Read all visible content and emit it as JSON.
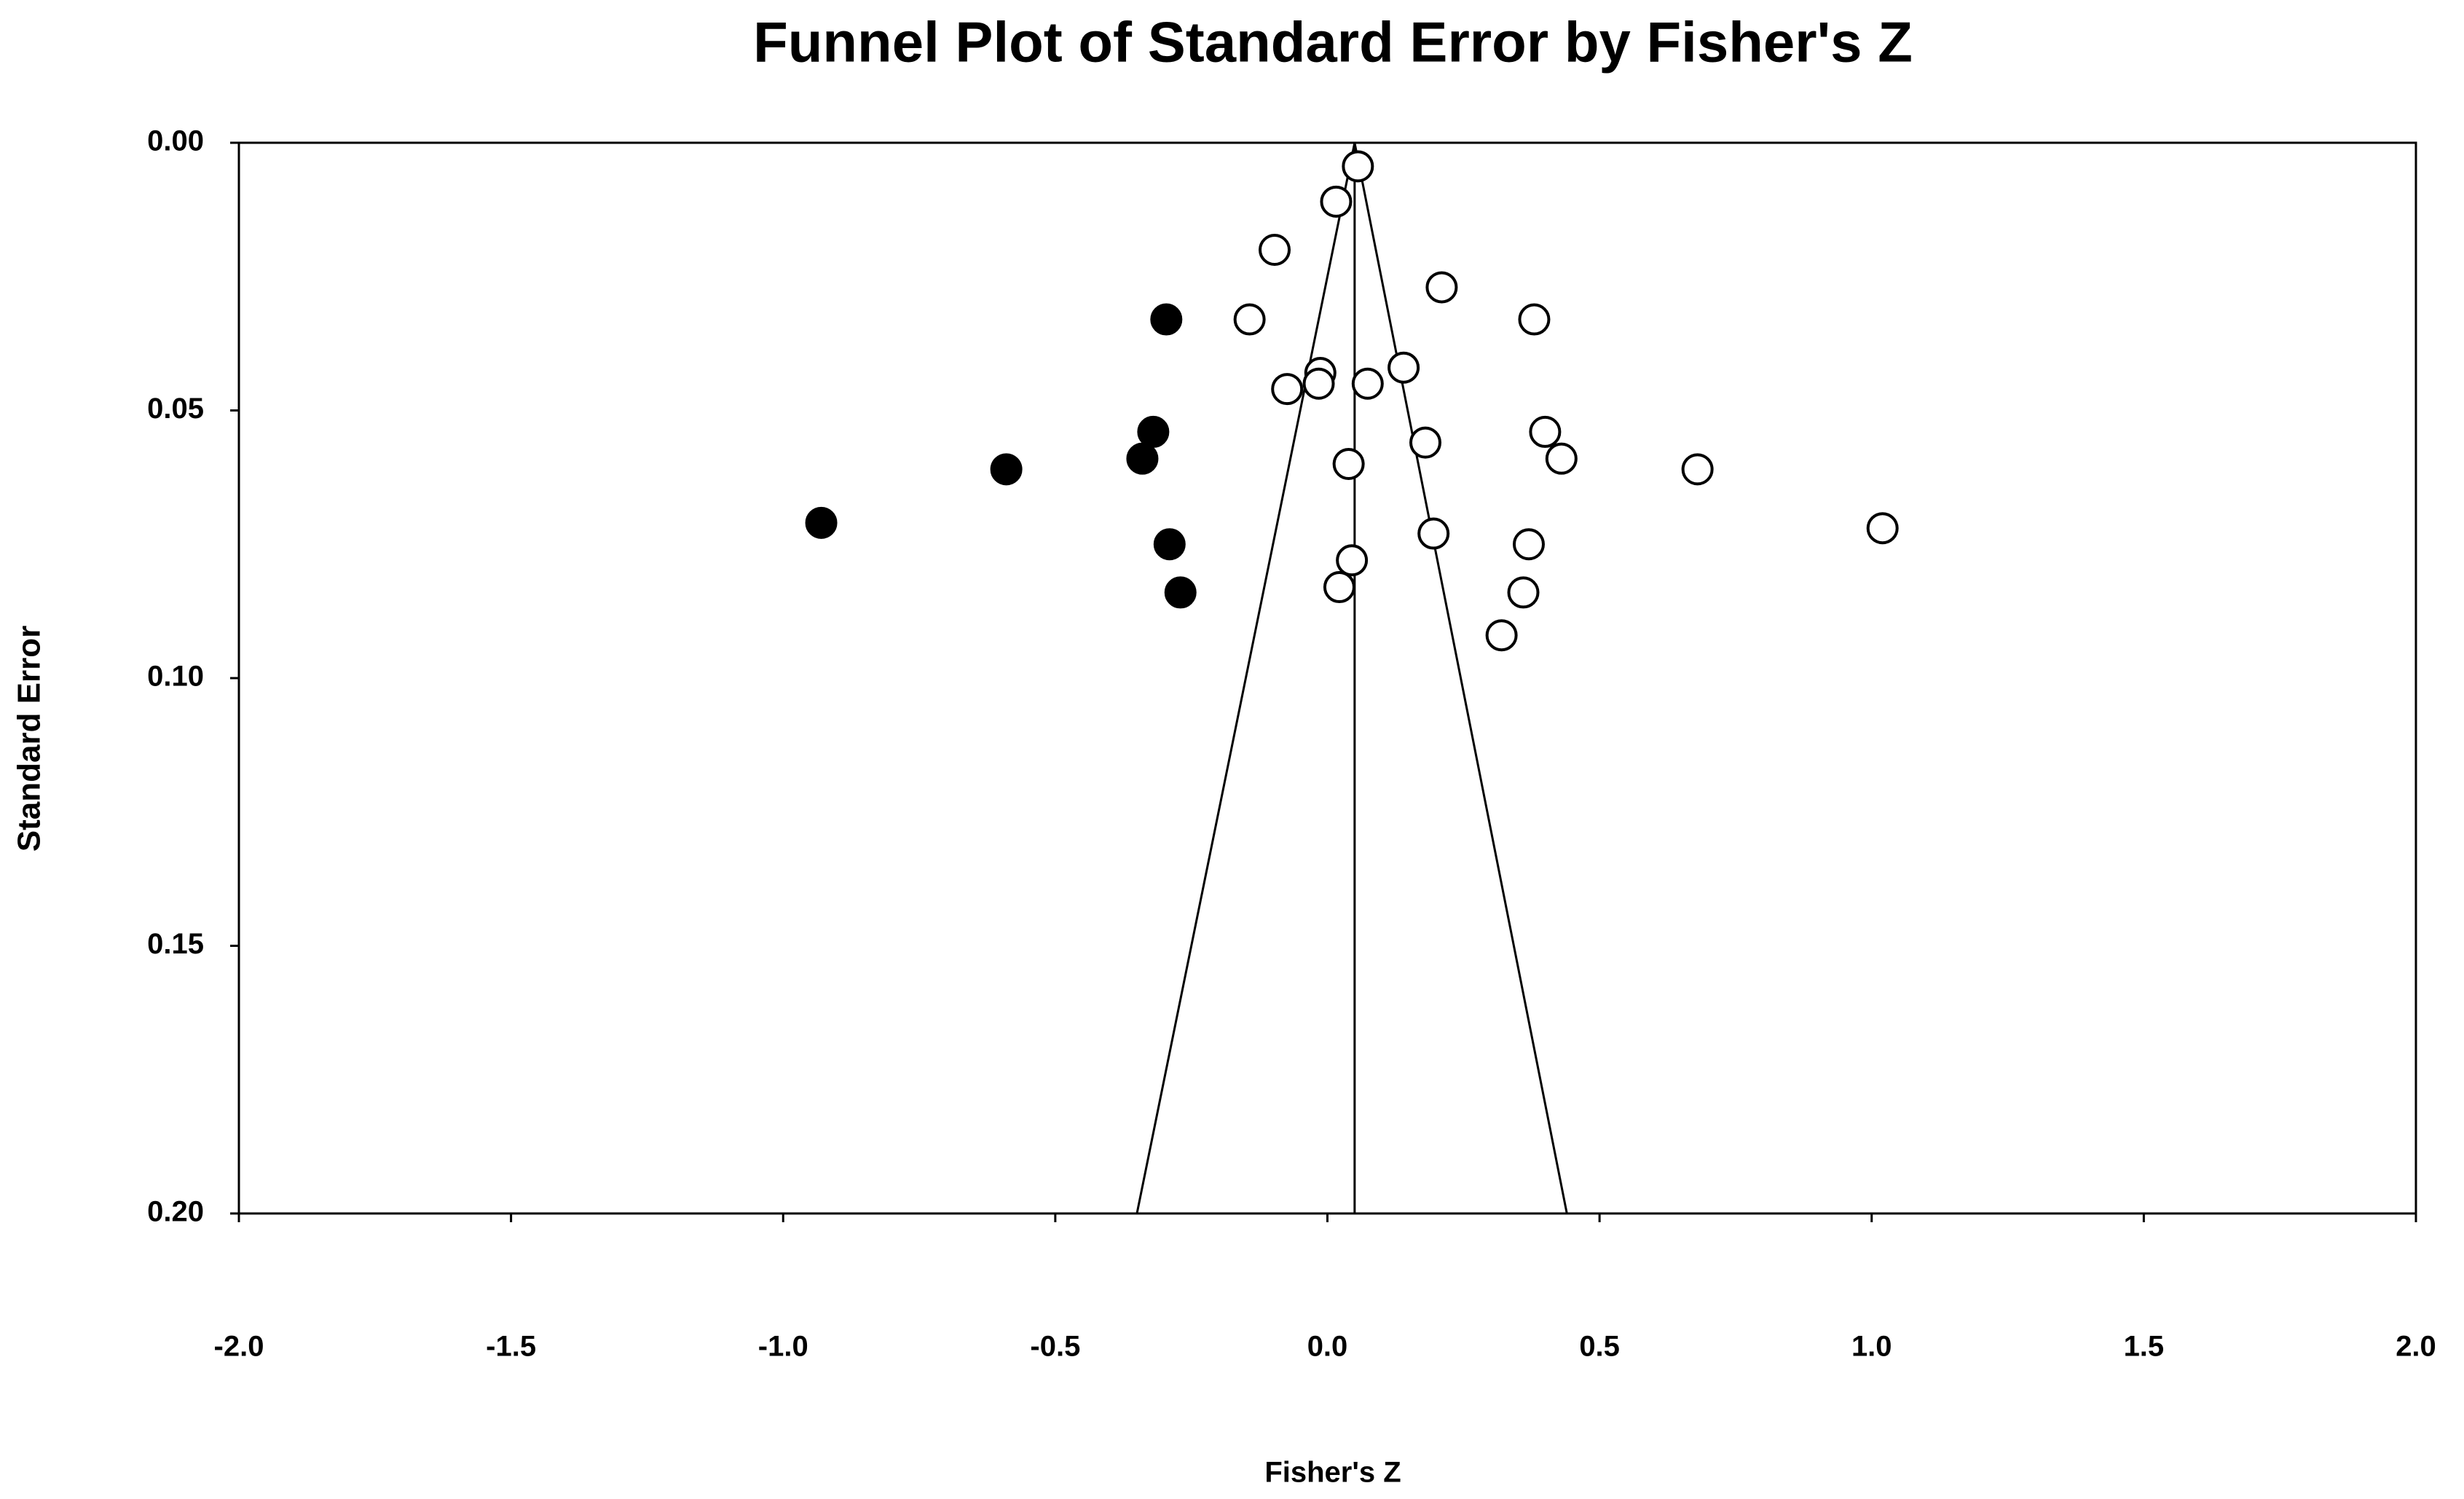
{
  "chart_data": {
    "type": "scatter",
    "title": "Funnel Plot of Standard Error by Fisher's Z",
    "x_label": "Fisher's Z",
    "y_label": "Standard Error",
    "xlim": [
      -2,
      2
    ],
    "ylim": [
      0,
      0.2
    ],
    "y_inverted": true,
    "xticks": [
      {
        "value": -2,
        "label": "-2.0"
      },
      {
        "value": -1.5,
        "label": "-1.5"
      },
      {
        "value": -1,
        "label": "-1.0"
      },
      {
        "value": -0.5,
        "label": "-0.5"
      },
      {
        "value": 0,
        "label": "0.0"
      },
      {
        "value": 0.5,
        "label": "0.5"
      },
      {
        "value": 1,
        "label": "1.0"
      },
      {
        "value": 1.5,
        "label": "1.5"
      },
      {
        "value": 2,
        "label": "2.0"
      }
    ],
    "yticks": [
      {
        "value": 0,
        "label": "0.00"
      },
      {
        "value": 0.05,
        "label": "0.05"
      },
      {
        "value": 0.1,
        "label": "0.10"
      },
      {
        "value": 0.15,
        "label": "0.15"
      },
      {
        "value": 0.2,
        "label": "0.20"
      }
    ],
    "series": [
      {
        "color": "#ffffff",
        "filled": false,
        "x": [
          0.056,
          0.016,
          -0.097,
          0.21,
          0.38,
          -0.143,
          -0.013,
          -0.016,
          -0.074,
          0.074,
          0.14,
          0.4,
          0.43,
          0.18,
          0.039,
          0.68,
          1.02,
          0.195,
          0.37,
          0.045,
          0.022,
          0.36,
          0.32
        ],
        "values": [
          0.0044,
          0.011,
          0.02,
          0.027,
          0.033,
          0.033,
          0.043,
          0.045,
          0.046,
          0.045,
          0.042,
          0.054,
          0.059,
          0.056,
          0.06,
          0.061,
          0.072,
          0.073,
          0.075,
          0.078,
          0.083,
          0.084,
          0.092
        ]
      },
      {
        "color": "#000000",
        "filled": true,
        "x": [
          -0.296,
          -0.32,
          -0.34,
          -0.59,
          -0.93,
          -0.29,
          -0.27
        ],
        "values": [
          0.033,
          0.054,
          0.059,
          0.061,
          0.071,
          0.075,
          0.084
        ]
      }
    ],
    "lines": [
      {
        "x": [
          -0.35,
          0.05,
          0.44
        ],
        "y": [
          0.2,
          0,
          0.2
        ]
      },
      {
        "x": [
          0.05,
          0.05
        ],
        "y": [
          0,
          0.2
        ]
      }
    ]
  }
}
